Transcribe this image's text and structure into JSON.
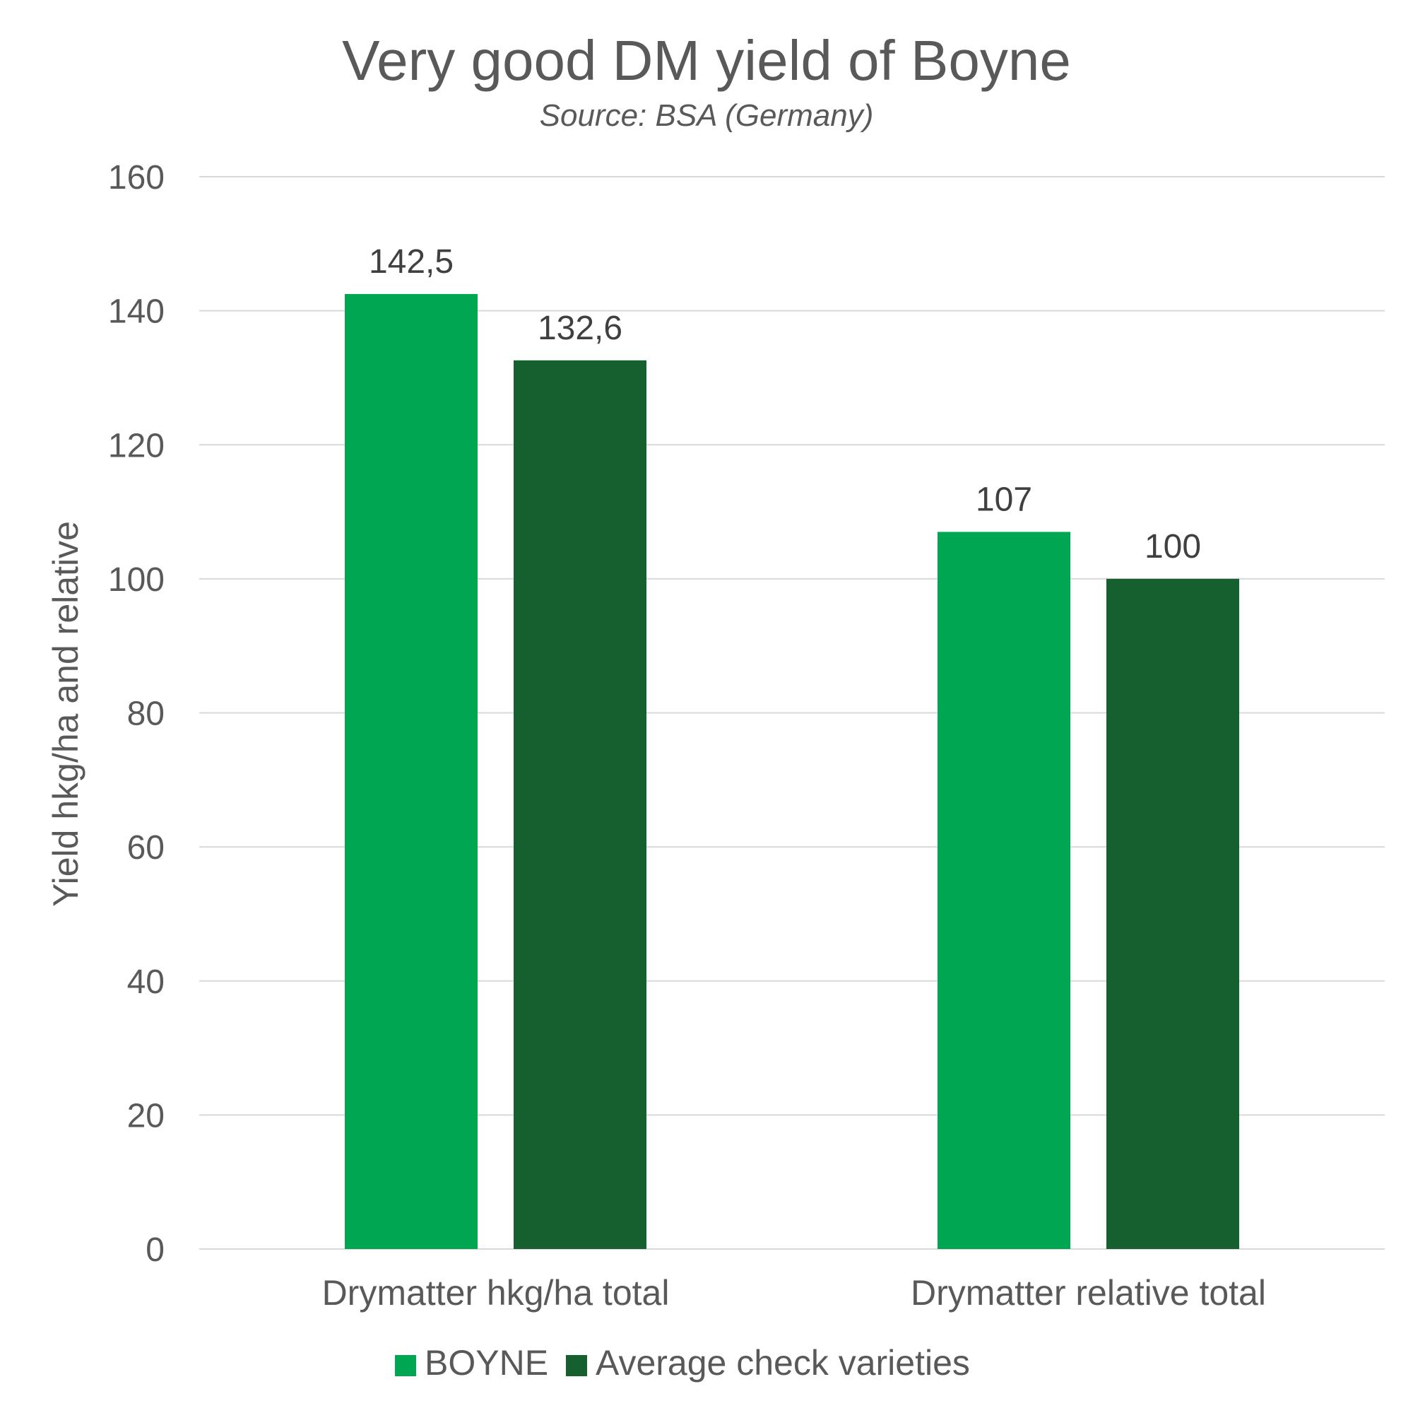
{
  "chart_data": {
    "type": "bar",
    "title": "Very good DM yield of Boyne",
    "subtitle": "Source: BSA (Germany)",
    "xlabel": "",
    "ylabel": "Yield hkg/ha and relative",
    "categories": [
      "Drymatter hkg/ha total",
      "Drymatter relative total"
    ],
    "series": [
      {
        "name": "BOYNE",
        "values": [
          142.5,
          107
        ],
        "labels": [
          "142,5",
          "107"
        ],
        "color": "#00A651"
      },
      {
        "name": "Average check varieties",
        "values": [
          132.6,
          100
        ],
        "labels": [
          "132,6",
          "100"
        ],
        "color": "#16602F"
      }
    ],
    "ylim": [
      0,
      160
    ],
    "yticks": [
      0,
      20,
      40,
      60,
      80,
      100,
      120,
      140,
      160
    ],
    "grid": true,
    "gridColor": "#D9D9D9",
    "legend": "bottom"
  }
}
